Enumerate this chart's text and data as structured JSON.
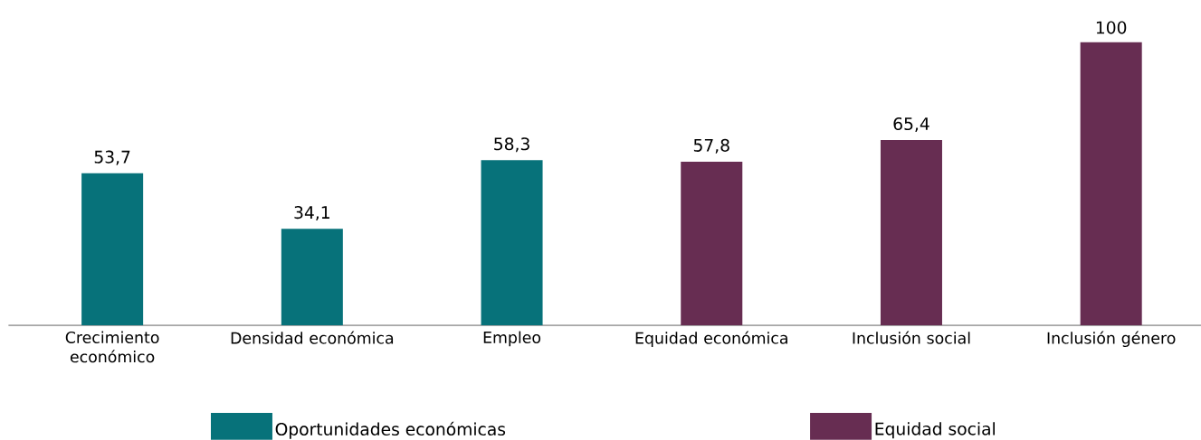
{
  "chart_data": {
    "type": "bar",
    "categories": [
      "Crecimiento económico",
      "Densidad económica",
      "Empleo",
      "Equidad económica",
      "Inclusión social",
      "Inclusión género"
    ],
    "series": [
      {
        "name": "Oportunidades económicas",
        "color": "#07727a",
        "values": [
          53.7,
          34.1,
          58.3,
          null,
          null,
          null
        ],
        "value_labels": [
          "53,7",
          "34,1",
          "58,3",
          null,
          null,
          null
        ]
      },
      {
        "name": "Equidad social",
        "color": "#672d52",
        "values": [
          null,
          null,
          null,
          57.8,
          65.4,
          100
        ],
        "value_labels": [
          null,
          null,
          null,
          "57,8",
          "65,4",
          "100"
        ]
      }
    ],
    "ylim": [
      0,
      100
    ],
    "tick_labels": "x",
    "legend": "bottom"
  }
}
